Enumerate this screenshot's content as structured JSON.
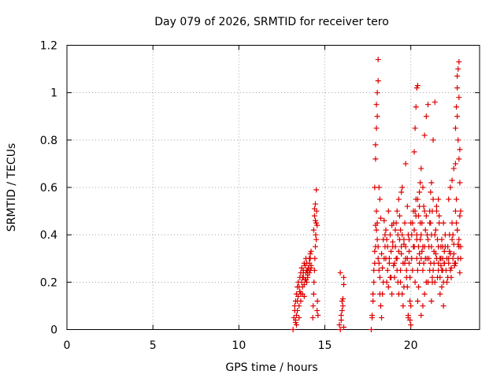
{
  "chart_data": {
    "type": "scatter",
    "title": "Day 079 of 2026, SRMTID for receiver tero",
    "xlabel": "GPS time / hours",
    "ylabel": "SRMTID / TECUs",
    "xlim": [
      0,
      24
    ],
    "ylim": [
      0,
      1.2
    ],
    "xticks": [
      0,
      5,
      10,
      15,
      20
    ],
    "yticks": [
      0,
      0.2,
      0.4,
      0.6,
      0.8,
      1,
      1.2
    ],
    "xtick_labels": [
      "0",
      "5",
      "10",
      "15",
      "20"
    ],
    "ytick_labels": [
      "0",
      "0.2",
      "0.4",
      "0.6",
      "0.8",
      "1",
      "1.2"
    ],
    "grid": true,
    "marker": "+",
    "series": [
      {
        "name": "SRMTID",
        "color": "#dd0000",
        "x": [
          13.15,
          13.2,
          13.25,
          13.3,
          13.35,
          13.4,
          13.45,
          13.5,
          13.55,
          13.6,
          13.65,
          13.7,
          13.75,
          13.8,
          13.85,
          13.9,
          13.95,
          14.0,
          14.05,
          14.1,
          14.15,
          14.2,
          13.25,
          13.3,
          13.35,
          13.4,
          13.45,
          13.5,
          13.55,
          13.6,
          13.65,
          13.7,
          13.75,
          13.8,
          13.85,
          13.9,
          13.95,
          14.0,
          14.05,
          14.1,
          14.15,
          14.2,
          13.3,
          13.4,
          13.5,
          13.6,
          13.7,
          13.8,
          13.9,
          14.0,
          14.1,
          14.2,
          13.35,
          13.55,
          13.75,
          13.95,
          14.15,
          14.3,
          14.32,
          14.35,
          14.37,
          14.4,
          14.42,
          14.45,
          14.47,
          14.5,
          14.52,
          14.55,
          14.57,
          14.6,
          14.35,
          14.4,
          14.45,
          14.5,
          14.55,
          14.4,
          14.45,
          14.5,
          15.85,
          15.9,
          15.95,
          16.0,
          16.05,
          16.1,
          15.9,
          16.0,
          16.1,
          15.95,
          16.05,
          16.1,
          17.7,
          17.75,
          17.8,
          17.85,
          17.9,
          17.95,
          18.0,
          18.05,
          18.1,
          18.15,
          18.2,
          18.25,
          18.3,
          18.35,
          18.4,
          18.45,
          18.5,
          18.55,
          18.6,
          18.65,
          18.7,
          18.75,
          18.8,
          18.85,
          18.9,
          18.95,
          19.0,
          17.75,
          17.8,
          17.85,
          17.9,
          17.95,
          18.0,
          18.05,
          18.1,
          18.15,
          18.2,
          18.25,
          18.3,
          18.35,
          18.4,
          18.45,
          18.5,
          18.55,
          18.6,
          18.65,
          18.7,
          18.75,
          18.8,
          18.85,
          18.9,
          18.95,
          19.0,
          17.9,
          17.95,
          18.0,
          18.0,
          18.05,
          18.1,
          18.1,
          17.95,
          18.05,
          18.15,
          18.2,
          18.25,
          19.05,
          19.1,
          19.15,
          19.2,
          19.25,
          19.3,
          19.35,
          19.4,
          19.45,
          19.5,
          19.55,
          19.6,
          19.65,
          19.7,
          19.75,
          19.8,
          19.85,
          19.9,
          19.95,
          20.0,
          19.05,
          19.1,
          19.15,
          19.2,
          19.25,
          19.3,
          19.35,
          19.4,
          19.45,
          19.5,
          19.55,
          19.6,
          19.65,
          19.7,
          19.75,
          19.8,
          19.85,
          19.9,
          19.95,
          20.0,
          19.2,
          19.3,
          19.4,
          19.5,
          19.6,
          19.7,
          19.8,
          19.9,
          20.0,
          19.45,
          19.85,
          19.95,
          20.05,
          20.1,
          20.15,
          20.2,
          20.25,
          20.3,
          20.35,
          20.4,
          20.45,
          20.5,
          20.55,
          20.6,
          20.65,
          20.7,
          20.75,
          20.8,
          20.85,
          20.9,
          20.95,
          21.0,
          20.05,
          20.1,
          20.15,
          20.2,
          20.25,
          20.3,
          20.35,
          20.4,
          20.45,
          20.5,
          20.55,
          20.6,
          20.65,
          20.7,
          20.75,
          20.8,
          20.85,
          20.9,
          20.95,
          21.0,
          20.2,
          20.25,
          20.3,
          20.35,
          20.4,
          20.5,
          20.55,
          20.6,
          20.7,
          20.8,
          20.9,
          21.0,
          20.4,
          20.45,
          20.6,
          20.7,
          20.8,
          21.0,
          20.35,
          20.5,
          21.05,
          21.1,
          21.15,
          21.2,
          21.25,
          21.3,
          21.35,
          21.4,
          21.45,
          21.5,
          21.55,
          21.6,
          21.65,
          21.7,
          21.75,
          21.8,
          21.85,
          21.9,
          21.95,
          22.0,
          21.05,
          21.1,
          21.15,
          21.2,
          21.25,
          21.3,
          21.35,
          21.4,
          21.45,
          21.5,
          21.55,
          21.6,
          21.65,
          21.7,
          21.75,
          21.8,
          21.85,
          21.9,
          21.95,
          22.0,
          21.1,
          21.15,
          21.2,
          21.3,
          21.4,
          21.5,
          21.6,
          21.7,
          21.8,
          21.9,
          21.2,
          21.25,
          21.6,
          21.75,
          21.85,
          21.95,
          22.05,
          22.1,
          22.15,
          22.2,
          22.25,
          22.3,
          22.35,
          22.4,
          22.45,
          22.5,
          22.55,
          22.6,
          22.65,
          22.7,
          22.75,
          22.8,
          22.85,
          22.9,
          22.1,
          22.2,
          22.3,
          22.4,
          22.5,
          22.6,
          22.7,
          22.8,
          22.9,
          22.15,
          22.25,
          22.35,
          22.45,
          22.55,
          22.65,
          22.75,
          22.85,
          22.2,
          22.3,
          22.4,
          22.5,
          22.6,
          22.6,
          22.65,
          22.7,
          22.7,
          22.75,
          22.75,
          22.8,
          22.8,
          22.85,
          22.85,
          22.9,
          22.7,
          22.8
        ],
        "y": [
          0.0,
          0.05,
          0.08,
          0.12,
          0.15,
          0.18,
          0.2,
          0.18,
          0.22,
          0.24,
          0.26,
          0.22,
          0.25,
          0.28,
          0.27,
          0.3,
          0.25,
          0.22,
          0.26,
          0.28,
          0.3,
          0.27,
          0.1,
          0.03,
          0.06,
          0.12,
          0.14,
          0.1,
          0.16,
          0.15,
          0.2,
          0.18,
          0.22,
          0.19,
          0.21,
          0.24,
          0.2,
          0.23,
          0.26,
          0.24,
          0.32,
          0.33,
          0.04,
          0.08,
          0.05,
          0.12,
          0.15,
          0.14,
          0.21,
          0.25,
          0.3,
          0.26,
          0.02,
          0.16,
          0.24,
          0.28,
          0.25,
          0.05,
          0.1,
          0.15,
          0.2,
          0.25,
          0.3,
          0.35,
          0.4,
          0.45,
          0.5,
          0.08,
          0.12,
          0.06,
          0.42,
          0.48,
          0.53,
          0.59,
          0.44,
          0.51,
          0.46,
          0.38,
          0.02,
          0.0,
          0.04,
          0.08,
          0.13,
          0.19,
          0.24,
          0.12,
          0.22,
          0.06,
          0.1,
          0.01,
          0.0,
          0.05,
          0.12,
          0.2,
          0.28,
          0.35,
          0.42,
          0.38,
          0.3,
          0.25,
          0.15,
          0.1,
          0.05,
          0.15,
          0.2,
          0.3,
          0.35,
          0.42,
          0.38,
          0.25,
          0.18,
          0.3,
          0.4,
          0.22,
          0.15,
          0.35,
          0.45,
          0.06,
          0.15,
          0.25,
          0.33,
          0.44,
          0.5,
          0.45,
          0.35,
          0.28,
          0.22,
          0.1,
          0.32,
          0.26,
          0.38,
          0.46,
          0.4,
          0.3,
          0.2,
          0.35,
          0.5,
          0.28,
          0.22,
          0.33,
          0.44,
          0.37,
          0.27,
          0.6,
          0.72,
          0.85,
          0.95,
          1.0,
          1.05,
          1.14,
          0.78,
          0.9,
          0.6,
          0.55,
          0.47,
          0.28,
          0.35,
          0.45,
          0.3,
          0.2,
          0.15,
          0.38,
          0.25,
          0.32,
          0.4,
          0.1,
          0.18,
          0.28,
          0.35,
          0.22,
          0.3,
          0.05,
          0.38,
          0.12,
          0.45,
          0.22,
          0.42,
          0.3,
          0.25,
          0.4,
          0.33,
          0.48,
          0.2,
          0.35,
          0.15,
          0.28,
          0.38,
          0.45,
          0.3,
          0.25,
          0.18,
          0.4,
          0.33,
          0.22,
          0.1,
          0.5,
          0.55,
          0.42,
          0.6,
          0.36,
          0.7,
          0.52,
          0.28,
          0.02,
          0.58,
          0.06,
          0.04,
          0.3,
          0.45,
          0.5,
          0.35,
          0.2,
          0.55,
          0.4,
          0.25,
          0.48,
          0.52,
          0.38,
          0.3,
          0.45,
          0.35,
          0.28,
          0.5,
          0.42,
          0.2,
          0.3,
          0.38,
          0.4,
          0.25,
          0.35,
          0.42,
          0.5,
          0.48,
          0.3,
          0.55,
          0.35,
          0.28,
          0.45,
          0.4,
          0.33,
          0.25,
          0.52,
          0.35,
          0.3,
          0.48,
          0.4,
          0.2,
          0.75,
          0.85,
          0.94,
          1.02,
          1.03,
          0.58,
          0.62,
          0.68,
          0.6,
          0.82,
          0.9,
          0.95,
          0.12,
          0.18,
          0.06,
          0.1,
          0.15,
          0.2,
          0.38,
          0.32,
          0.3,
          0.25,
          0.45,
          0.35,
          0.2,
          0.55,
          0.28,
          0.4,
          0.32,
          0.5,
          0.22,
          0.35,
          0.45,
          0.3,
          0.27,
          0.38,
          0.25,
          0.2,
          0.33,
          0.4,
          0.35,
          0.45,
          0.28,
          0.4,
          0.5,
          0.25,
          0.33,
          0.2,
          0.42,
          0.3,
          0.38,
          0.28,
          0.48,
          0.22,
          0.35,
          0.25,
          0.3,
          0.45,
          0.28,
          0.35,
          0.5,
          0.58,
          0.62,
          0.8,
          0.96,
          0.52,
          0.55,
          0.15,
          0.18,
          0.1,
          0.12,
          0.22,
          0.25,
          0.3,
          0.35,
          0.28,
          0.25,
          0.3,
          0.35,
          0.28,
          0.4,
          0.32,
          0.22,
          0.45,
          0.3,
          0.36,
          0.27,
          0.5,
          0.55,
          0.42,
          0.3,
          0.38,
          0.48,
          0.35,
          0.2,
          0.3,
          0.25,
          0.38,
          0.32,
          0.28,
          0.42,
          0.35,
          0.3,
          0.22,
          0.33,
          0.26,
          0.4,
          0.28,
          0.45,
          0.36,
          0.24,
          0.55,
          0.6,
          0.63,
          0.68,
          0.7,
          0.85,
          0.94,
          0.9,
          1.02,
          0.8,
          1.1,
          0.72,
          1.13,
          0.62,
          0.76,
          0.5,
          1.07,
          0.98
        ]
      }
    ]
  }
}
